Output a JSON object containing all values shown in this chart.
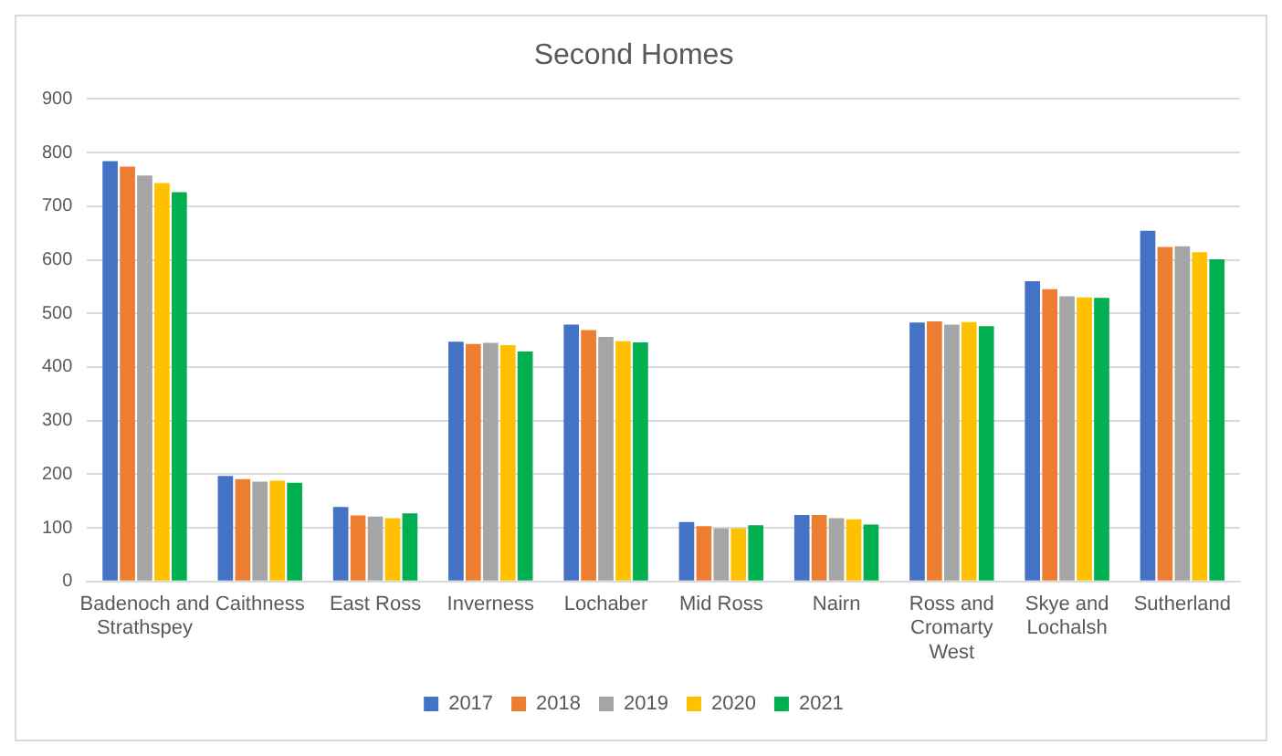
{
  "chart_data": {
    "type": "bar",
    "title": "Second Homes",
    "categories": [
      "Badenoch and Strathspey",
      "Caithness",
      "East Ross",
      "Inverness",
      "Lochaber",
      "Mid Ross",
      "Nairn",
      "Ross and Cromarty West",
      "Skye and Lochalsh",
      "Sutherland"
    ],
    "series": [
      {
        "name": "2017",
        "color": "#4472c4",
        "values": [
          784,
          197,
          139,
          447,
          479,
          111,
          124,
          483,
          560,
          654
        ]
      },
      {
        "name": "2018",
        "color": "#ed7d31",
        "values": [
          774,
          191,
          123,
          443,
          469,
          103,
          124,
          485,
          545,
          624
        ]
      },
      {
        "name": "2019",
        "color": "#a5a5a5",
        "values": [
          757,
          186,
          121,
          445,
          456,
          99,
          118,
          479,
          532,
          625
        ]
      },
      {
        "name": "2020",
        "color": "#ffc000",
        "values": [
          743,
          188,
          118,
          441,
          448,
          99,
          116,
          484,
          530,
          614
        ]
      },
      {
        "name": "2021",
        "color": "#00b050",
        "values": [
          726,
          184,
          127,
          429,
          446,
          105,
          106,
          476,
          529,
          601
        ]
      }
    ],
    "ylim": [
      0,
      900
    ],
    "yticks": [
      0,
      100,
      200,
      300,
      400,
      500,
      600,
      700,
      800,
      900
    ],
    "grid": "y",
    "legend": "bottom"
  }
}
